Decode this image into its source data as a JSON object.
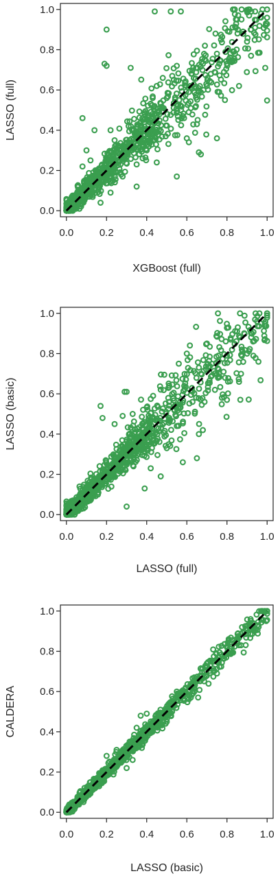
{
  "chart_data": [
    {
      "type": "scatter",
      "title": "",
      "xlabel": "XGBoost (full)",
      "ylabel": "LASSO (full)",
      "xlim": [
        -0.03,
        1.03
      ],
      "ylim": [
        -0.03,
        1.03
      ],
      "xticks": [
        "0.0",
        "0.2",
        "0.4",
        "0.6",
        "0.8",
        "1.0"
      ],
      "yticks": [
        "0.0",
        "0.2",
        "0.4",
        "0.6",
        "0.8",
        "1.0"
      ],
      "grid": false,
      "reference_line": {
        "from": [
          0,
          0
        ],
        "to": [
          1,
          1
        ],
        "style": "dashed",
        "color": "#000000"
      },
      "point_color": "#3a9e4f",
      "marker": "open-circle",
      "points": [
        [
          0.44,
          0.99
        ],
        [
          0.52,
          0.99
        ],
        [
          0.57,
          0.99
        ],
        [
          0.2,
          0.9
        ],
        [
          0.19,
          0.73
        ],
        [
          0.2,
          0.72
        ],
        [
          0.32,
          0.71
        ],
        [
          0.55,
          0.72
        ],
        [
          0.48,
          0.66
        ],
        [
          0.61,
          0.59
        ],
        [
          0.58,
          0.47
        ],
        [
          0.62,
          0.51
        ],
        [
          0.65,
          0.43
        ],
        [
          0.61,
          0.34
        ],
        [
          0.6,
          0.36
        ],
        [
          0.66,
          0.29
        ],
        [
          0.67,
          0.28
        ],
        [
          0.75,
          0.36
        ],
        [
          0.55,
          0.17
        ],
        [
          0.31,
          0.42
        ],
        [
          0.38,
          0.26
        ],
        [
          0.4,
          0.3
        ],
        [
          0.35,
          0.12
        ],
        [
          0.45,
          0.24
        ],
        [
          0.28,
          0.29
        ],
        [
          0.24,
          0.35
        ],
        [
          0.22,
          0.4
        ],
        [
          0.08,
          0.46
        ],
        [
          0.14,
          0.4
        ],
        [
          0.43,
          0.56
        ],
        [
          0.45,
          0.62
        ],
        [
          0.28,
          0.17
        ],
        [
          0.17,
          0.04
        ],
        [
          0.22,
          0.09
        ],
        [
          0.35,
          0.23
        ],
        [
          0.12,
          0.25
        ],
        [
          0.1,
          0.3
        ],
        [
          0.08,
          0.22
        ],
        [
          0.69,
          0.82
        ],
        [
          0.77,
          0.85
        ],
        [
          0.85,
          0.95
        ],
        [
          0.9,
          0.99
        ],
        [
          0.94,
          0.99
        ],
        [
          0.97,
          0.98
        ],
        [
          0.72,
          0.68
        ],
        [
          0.8,
          0.73
        ],
        [
          0.84,
          0.78
        ],
        [
          0.9,
          0.84
        ],
        [
          0.88,
          0.89
        ],
        [
          0.66,
          0.59
        ],
        [
          0.7,
          0.62
        ],
        [
          0.79,
          0.55
        ],
        [
          0.86,
          0.62
        ],
        [
          0.92,
          0.77
        ],
        [
          0.75,
          0.78
        ],
        [
          0.68,
          0.73
        ]
      ],
      "clusters": [
        {
          "from": 0.0,
          "to": 0.4,
          "count": 650,
          "spread": 0.05
        },
        {
          "from": 0.4,
          "to": 1.0,
          "count": 320,
          "spread": 0.08
        }
      ]
    },
    {
      "type": "scatter",
      "title": "",
      "xlabel": "LASSO (full)",
      "ylabel": "LASSO (basic)",
      "xlim": [
        -0.03,
        1.03
      ],
      "ylim": [
        -0.03,
        1.03
      ],
      "xticks": [
        "0.0",
        "0.2",
        "0.4",
        "0.6",
        "0.8",
        "1.0"
      ],
      "yticks": [
        "0.0",
        "0.2",
        "0.4",
        "0.6",
        "0.8",
        "1.0"
      ],
      "grid": false,
      "reference_line": {
        "from": [
          0,
          0
        ],
        "to": [
          1,
          1
        ],
        "style": "dashed",
        "color": "#000000"
      },
      "point_color": "#3a9e4f",
      "marker": "open-circle",
      "points": [
        [
          0.29,
          0.61
        ],
        [
          0.3,
          0.61
        ],
        [
          0.17,
          0.54
        ],
        [
          0.18,
          0.48
        ],
        [
          0.33,
          0.5
        ],
        [
          0.28,
          0.49
        ],
        [
          0.24,
          0.45
        ],
        [
          0.38,
          0.43
        ],
        [
          0.4,
          0.4
        ],
        [
          0.66,
          0.4
        ],
        [
          0.68,
          0.42
        ],
        [
          0.65,
          0.28
        ],
        [
          0.42,
          0.23
        ],
        [
          0.47,
          0.19
        ],
        [
          0.39,
          0.13
        ],
        [
          0.3,
          0.04
        ],
        [
          0.56,
          0.75
        ],
        [
          0.6,
          0.8
        ],
        [
          0.66,
          0.73
        ],
        [
          0.7,
          0.85
        ],
        [
          0.74,
          0.62
        ],
        [
          0.8,
          0.57
        ],
        [
          0.86,
          0.66
        ],
        [
          0.9,
          0.8
        ],
        [
          0.93,
          0.86
        ],
        [
          0.95,
          0.96
        ],
        [
          0.85,
          0.91
        ],
        [
          0.8,
          0.79
        ],
        [
          0.76,
          0.7
        ],
        [
          0.55,
          0.44
        ],
        [
          0.5,
          0.33
        ],
        [
          0.58,
          0.26
        ]
      ],
      "clusters": [
        {
          "from": 0.0,
          "to": 0.4,
          "count": 700,
          "spread": 0.045
        },
        {
          "from": 0.4,
          "to": 1.0,
          "count": 320,
          "spread": 0.07
        }
      ]
    },
    {
      "type": "scatter",
      "title": "",
      "xlabel": "LASSO (basic)",
      "ylabel": "CALDERA",
      "xlim": [
        -0.03,
        1.03
      ],
      "ylim": [
        -0.03,
        1.03
      ],
      "xticks": [
        "0.0",
        "0.2",
        "0.4",
        "0.6",
        "0.8",
        "1.0"
      ],
      "yticks": [
        "0.0",
        "0.2",
        "0.4",
        "0.6",
        "0.8",
        "1.0"
      ],
      "grid": false,
      "reference_line": {
        "from": [
          0,
          0
        ],
        "to": [
          1,
          1
        ],
        "style": "dashed",
        "color": "#000000"
      },
      "point_color": "#3a9e4f",
      "marker": "open-circle",
      "points": [
        [
          0.2,
          0.28
        ],
        [
          0.25,
          0.31
        ],
        [
          0.35,
          0.42
        ],
        [
          0.37,
          0.48
        ],
        [
          0.4,
          0.49
        ],
        [
          0.3,
          0.22
        ],
        [
          0.33,
          0.26
        ],
        [
          0.5,
          0.45
        ],
        [
          0.55,
          0.6
        ],
        [
          0.62,
          0.57
        ],
        [
          0.7,
          0.74
        ],
        [
          0.75,
          0.69
        ],
        [
          0.8,
          0.82
        ],
        [
          0.87,
          0.83
        ],
        [
          0.92,
          0.95
        ],
        [
          0.97,
          0.96
        ]
      ],
      "clusters": [
        {
          "from": 0.0,
          "to": 0.45,
          "count": 700,
          "spread": 0.022
        },
        {
          "from": 0.45,
          "to": 1.0,
          "count": 300,
          "spread": 0.018
        }
      ]
    }
  ]
}
